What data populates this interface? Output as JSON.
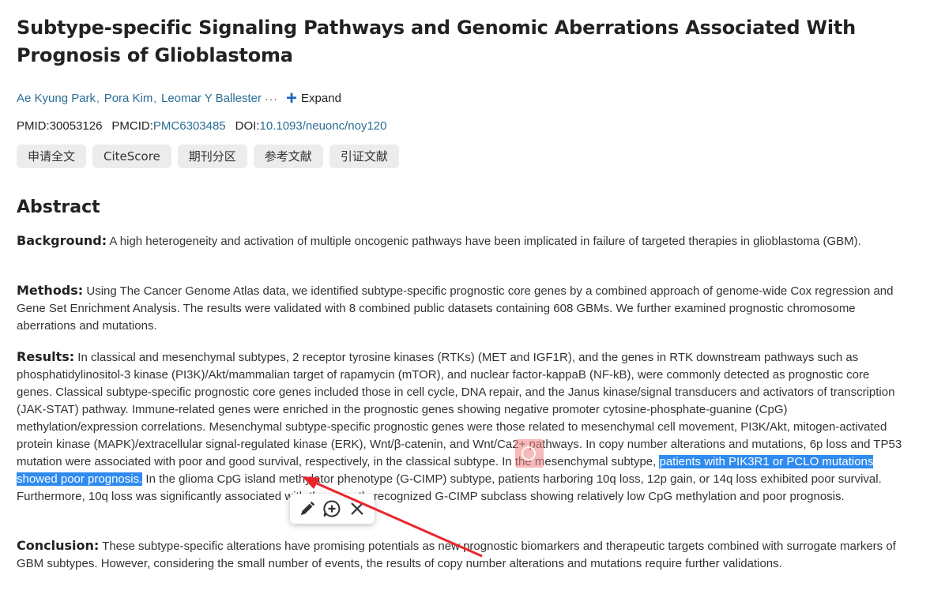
{
  "article": {
    "title": "Subtype-specific Signaling Pathways and Genomic Aberrations Associated With Prognosis of Glioblastoma",
    "authors": [
      "Ae Kyung Park",
      "Pora Kim",
      "Leomar Y Ballester"
    ],
    "author_separator": ",",
    "ellipsis": "···",
    "expand_label": "Expand",
    "pmid_label": "PMID:",
    "pmid": "30053126",
    "pmcid_label": "PMCID:",
    "pmcid": "PMC6303485",
    "doi_label": "DOI:",
    "doi": "10.1093/neuonc/noy120"
  },
  "actions": {
    "request_fulltext": "申请全文",
    "citescore": "CiteScore",
    "journal_quartile": "期刊分区",
    "references": "参考文献",
    "citations": "引证文献"
  },
  "abstract": {
    "heading": "Abstract",
    "background_label": "Background:",
    "background_text": " A high heterogeneity and activation of multiple oncogenic pathways have been implicated in failure of targeted therapies in glioblastoma (GBM).",
    "methods_label": "Methods:",
    "methods_text": " Using The Cancer Genome Atlas data, we identified subtype-specific prognostic core genes by a combined approach of genome-wide Cox regression and Gene Set Enrichment Analysis. The results were validated with 8 combined public datasets containing 608 GBMs. We further examined prognostic chromosome aberrations and mutations.",
    "results_label": "Results:",
    "results_text_before": " In classical and mesenchymal subtypes, 2 receptor tyrosine kinases (RTKs) (MET and IGF1R), and the genes in RTK downstream pathways such as phosphatidylinositol-3 kinase (PI3K)/Akt/mammalian target of rapamycin (mTOR), and nuclear factor-kappaB (NF-kB), were commonly detected as prognostic core genes. Classical subtype-specific prognostic core genes included those in cell cycle, DNA repair, and the Janus kinase/signal transducers and activators of transcription (JAK-STAT) pathway. Immune-related genes were enriched in the prognostic genes showing negative promoter cytosine-phosphate-guanine (CpG) methylation/expression correlations. Mesenchymal subtype-specific prognostic genes were those related to mesenchymal cell movement, PI3K/Akt, mitogen-activated protein kinase (MAPK)/extracellular signal-regulated kinase (ERK), Wnt/β-catenin, and Wnt/Ca2+ pathways. In copy number alterations and mutations, 6p loss and TP53 mutation were associated with poor and good survival, respectively, in the classical subtype. In the mesenchymal subtype, ",
    "results_highlight": "patients with PIK3R1 or PCLO mutations showed poor prognosis.",
    "results_text_after": " In the glioma CpG island methylator phenotype (G-CIMP) subtype, patients harboring 10q loss, 12p gain, or 14q loss exhibited poor survival. Furthermore, 10q loss was significantly associated with the recently recognized G-CIMP subclass showing relatively low CpG methylation and poor prognosis.",
    "conclusion_label": "Conclusion:",
    "conclusion_text": " These subtype-specific alterations have promising potentials as new prognostic biomarkers and therapeutic targets combined with surrogate markers of GBM subtypes. However, considering the small number of events, the results of copy number alterations and mutations require further validations."
  },
  "annotation_toolbar": {
    "tools": [
      "pen-icon",
      "add-note-icon",
      "close-icon"
    ]
  },
  "colors": {
    "highlight": "#2f8bef",
    "link": "#2a6d94",
    "arrow": "#e8262c",
    "expand_plus": "#1565c0"
  }
}
